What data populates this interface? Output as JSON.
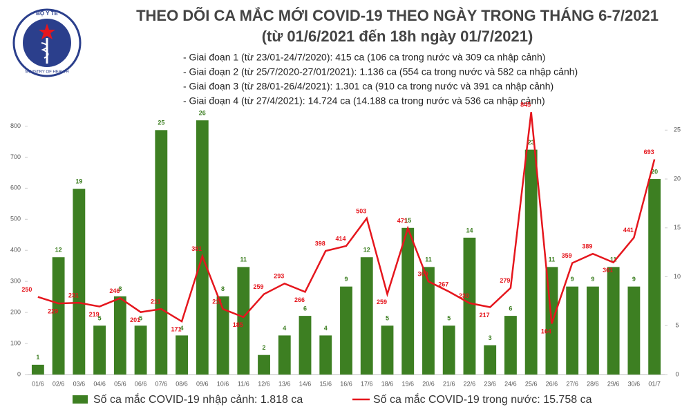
{
  "logo": {
    "top": "BỘ Y TẾ",
    "bottom": "MINISTRY OF HEALTH"
  },
  "chart_data": {
    "type": "combo",
    "title": "THEO DÕI CA MẮC MỚI COVID-19 THEO NGÀY TRONG THÁNG 6-7/2021",
    "subtitle": "(từ 01/6/2021 đến 18h ngày 01/7/2021)",
    "annotations": [
      "- Giai đoạn 1 (từ 23/01-24/7/2020): 415 ca (106 ca trong nước và 309 ca nhập cảnh)",
      "- Giai đoạn 2 (từ 25/7/2020-27/01/2021): 1.136 ca (554 ca trong nước và 582 ca nhập cảnh)",
      "- Giai đoạn 3 (từ 28/01-26/4/2021): 1.301 ca (910 ca trong nước và 391 ca nhập cảnh)",
      "- Giai đoạn 4 (từ 27/4/2021): 14.724 ca (14.188 ca trong nước và 536 ca nhập cảnh)"
    ],
    "categories": [
      "01/6",
      "02/6",
      "03/6",
      "04/6",
      "05/6",
      "06/6",
      "07/6",
      "08/6",
      "09/6",
      "10/6",
      "11/6",
      "12/6",
      "13/6",
      "14/6",
      "15/6",
      "16/6",
      "17/6",
      "18/6",
      "19/6",
      "20/6",
      "21/6",
      "22/6",
      "23/6",
      "24/6",
      "25/6",
      "26/6",
      "27/6",
      "28/6",
      "29/6",
      "30/6",
      "01/7"
    ],
    "series": [
      {
        "name": "Số ca mắc COVID-19 nhập cảnh: 1.818 ca",
        "type": "bar",
        "axis": "y2",
        "color": "#3d7f22",
        "values": [
          1,
          12,
          19,
          5,
          8,
          5,
          25,
          4,
          26,
          8,
          11,
          2,
          4,
          6,
          4,
          9,
          12,
          5,
          15,
          11,
          5,
          14,
          3,
          6,
          23,
          11,
          9,
          9,
          11,
          9,
          20
        ]
      },
      {
        "name": "Số ca mắc COVID-19 trong nước: 15.758 ca",
        "type": "line",
        "axis": "y",
        "color": "#e5161d",
        "values": [
          250,
          229,
          231,
          219,
          246,
          201,
          211,
          171,
          381,
          211,
          185,
          259,
          293,
          266,
          398,
          414,
          503,
          259,
          471,
          300,
          267,
          230,
          217,
          279,
          845,
          164,
          359,
          389,
          361,
          441,
          693
        ]
      }
    ],
    "ylim": [
      0,
      850
    ],
    "yticks": [
      0,
      100,
      200,
      300,
      400,
      500,
      600,
      700,
      800
    ],
    "y2lim": [
      0,
      27
    ],
    "y2ticks": [
      0,
      5,
      10,
      15,
      20,
      25
    ]
  }
}
